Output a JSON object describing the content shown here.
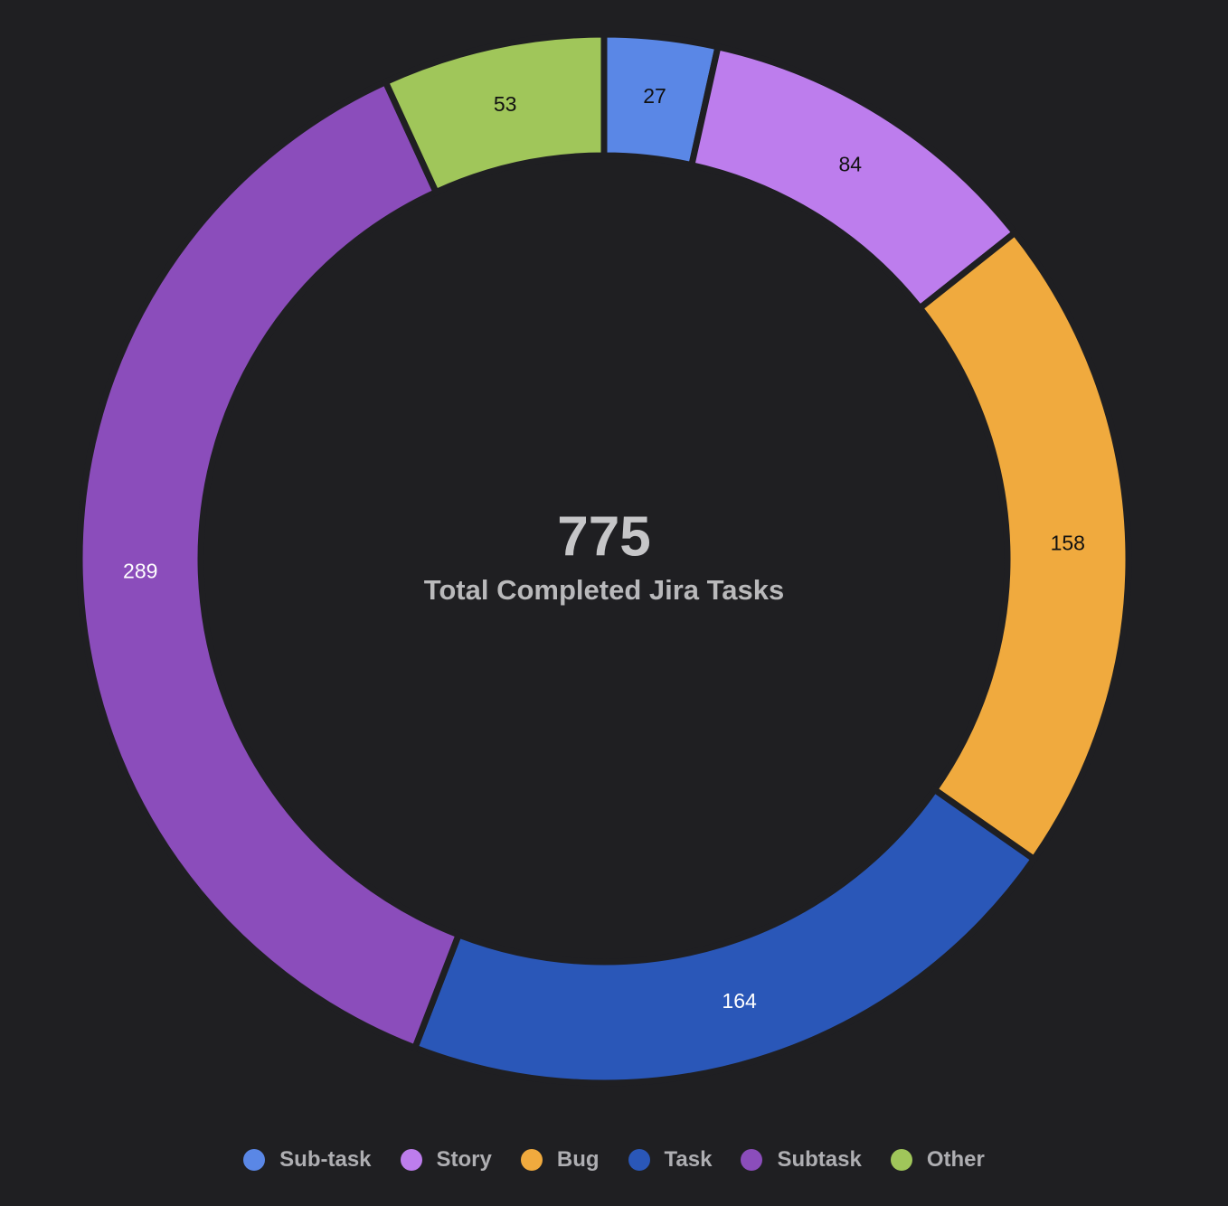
{
  "chart_data": {
    "type": "pie",
    "categories": [
      "Sub-task",
      "Story",
      "Bug",
      "Task",
      "Subtask",
      "Other"
    ],
    "values": [
      27,
      84,
      158,
      164,
      289,
      53
    ],
    "colors": [
      "#5a87e6",
      "#bd7ded",
      "#f0aa3e",
      "#2a57b8",
      "#8b4dbb",
      "#a0c65a"
    ],
    "label_colors": [
      "#111111",
      "#111111",
      "#111111",
      "#ffffff",
      "#ffffff",
      "#111111"
    ],
    "donut": true,
    "center_total": "775",
    "center_caption": "Total Completed Jira Tasks",
    "legend_position": "bottom"
  }
}
